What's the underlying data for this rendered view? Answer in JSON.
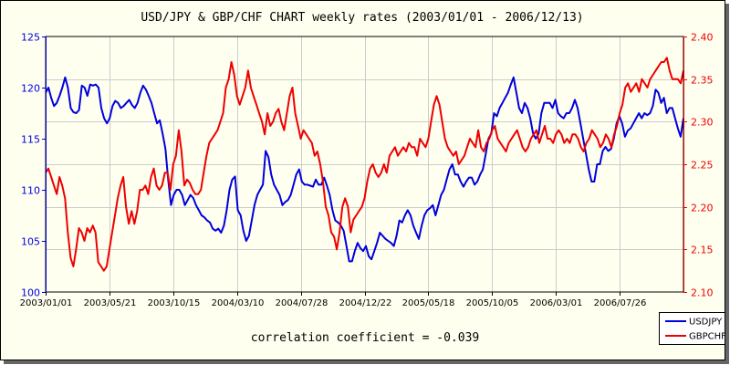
{
  "colors": {
    "background": "#fffff0",
    "usdjpy": "#0000dd",
    "gbpchf": "#ee0000",
    "grid": "#cccccc",
    "text": "#000000"
  },
  "chart_data": {
    "type": "line",
    "title": "USD/JPY & GBP/CHF CHART weekly rates (2003/01/01 - 2006/12/13)",
    "annotation": "correlation coefficient = -0.039",
    "grid": true,
    "legend_position": "bottom-right",
    "x_tick_labels": [
      "2003/01/01",
      "2003/05/21",
      "2003/10/15",
      "2004/03/10",
      "2004/07/28",
      "2004/12/22",
      "2005/05/18",
      "2005/10/05",
      "2006/03/01",
      "2006/07/26"
    ],
    "y_left": {
      "ylim": [
        100,
        125
      ],
      "ticks": [
        "100",
        "105",
        "110",
        "115",
        "120",
        "125"
      ]
    },
    "y_right": {
      "ylim": [
        2.1,
        2.4
      ],
      "ticks": [
        "2.10",
        "2.15",
        "2.20",
        "2.25",
        "2.30",
        "2.35",
        "2.40"
      ]
    },
    "series": [
      {
        "name": "USDJPY",
        "axis": "left",
        "values": [
          119.5,
          120,
          119,
          118.2,
          118.5,
          119.2,
          120,
          121,
          120,
          118,
          117.6,
          117.5,
          117.8,
          120.2,
          120,
          119.2,
          120.3,
          120.2,
          120.3,
          120,
          118,
          117,
          116.5,
          117,
          118.2,
          118.7,
          118.5,
          118,
          118.2,
          118.5,
          118.8,
          118.3,
          118,
          118.5,
          119.5,
          120.2,
          119.8,
          119.2,
          118.5,
          117.5,
          116.5,
          116.8,
          115.5,
          114,
          111,
          108.5,
          109.5,
          110,
          110,
          109.5,
          108.5,
          109,
          109.5,
          109.2,
          108.5,
          108,
          107.5,
          107.3,
          107,
          106.8,
          106.2,
          106,
          106.2,
          105.8,
          106.5,
          108,
          110,
          111,
          111.3,
          108,
          107.5,
          106,
          105,
          105.5,
          107,
          108.5,
          109.5,
          110,
          110.5,
          113.8,
          113.2,
          111.5,
          110.5,
          110,
          109.5,
          108.5,
          108.8,
          109,
          109.5,
          110.5,
          111.5,
          112,
          110.8,
          110.5,
          110.5,
          110.4,
          110.3,
          111,
          110.5,
          110.5,
          111.2,
          110.4,
          109.5,
          108,
          107,
          106.8,
          106.5,
          106,
          104.5,
          103,
          103,
          104,
          104.8,
          104.3,
          104,
          104.5,
          103.5,
          103.2,
          104,
          104.8,
          105.8,
          105.5,
          105.2,
          105,
          104.8,
          104.5,
          105.5,
          107,
          106.8,
          107.5,
          108,
          107.5,
          106.5,
          105.8,
          105.2,
          106.5,
          107.5,
          108,
          108.2,
          108.5,
          107.5,
          108.5,
          109.5,
          110,
          111,
          112,
          112.5,
          111.5,
          111.5,
          110.8,
          110.3,
          110.8,
          111.2,
          111.2,
          110.5,
          110.8,
          111.5,
          112,
          113.5,
          115,
          115.5,
          117.5,
          117.2,
          118,
          118.5,
          119,
          119.5,
          120.3,
          121,
          119.5,
          118,
          117.5,
          118.5,
          118,
          117,
          115.5,
          115,
          115.5,
          117.5,
          118.5,
          118.5,
          118.5,
          118,
          118.8,
          117.5,
          117.2,
          117,
          117.5,
          117.5,
          118,
          118.8,
          118,
          116.5,
          115,
          113.5,
          112,
          110.8,
          110.8,
          112.5,
          112.5,
          113.8,
          114.2,
          113.8,
          114,
          115,
          116.5,
          117.2,
          116.5,
          115.2,
          115.8,
          116,
          116.5,
          117,
          117.5,
          117,
          117.5,
          117.3,
          117.5,
          118.2,
          119.8,
          119.5,
          118.5,
          119,
          117.5,
          118,
          118,
          117,
          116,
          115.2,
          117
        ]
      },
      {
        "name": "GBPCHF",
        "axis": "right",
        "values": [
          2.24,
          2.245,
          2.235,
          2.225,
          2.215,
          2.235,
          2.225,
          2.21,
          2.17,
          2.14,
          2.13,
          2.15,
          2.175,
          2.17,
          2.16,
          2.175,
          2.17,
          2.178,
          2.17,
          2.135,
          2.13,
          2.125,
          2.13,
          2.15,
          2.17,
          2.19,
          2.21,
          2.225,
          2.235,
          2.2,
          2.18,
          2.195,
          2.18,
          2.195,
          2.22,
          2.22,
          2.225,
          2.215,
          2.235,
          2.245,
          2.225,
          2.22,
          2.225,
          2.24,
          2.24,
          2.22,
          2.25,
          2.26,
          2.29,
          2.265,
          2.225,
          2.232,
          2.228,
          2.22,
          2.215,
          2.215,
          2.22,
          2.24,
          2.26,
          2.275,
          2.28,
          2.285,
          2.29,
          2.3,
          2.31,
          2.34,
          2.35,
          2.37,
          2.355,
          2.33,
          2.32,
          2.33,
          2.34,
          2.36,
          2.34,
          2.33,
          2.32,
          2.31,
          2.3,
          2.285,
          2.31,
          2.295,
          2.3,
          2.31,
          2.315,
          2.3,
          2.29,
          2.31,
          2.33,
          2.34,
          2.31,
          2.295,
          2.28,
          2.29,
          2.285,
          2.28,
          2.275,
          2.26,
          2.265,
          2.25,
          2.23,
          2.2,
          2.19,
          2.17,
          2.165,
          2.15,
          2.17,
          2.2,
          2.21,
          2.2,
          2.17,
          2.185,
          2.19,
          2.195,
          2.2,
          2.21,
          2.23,
          2.245,
          2.25,
          2.24,
          2.235,
          2.24,
          2.25,
          2.24,
          2.26,
          2.265,
          2.27,
          2.26,
          2.265,
          2.27,
          2.265,
          2.275,
          2.27,
          2.27,
          2.26,
          2.28,
          2.275,
          2.27,
          2.28,
          2.3,
          2.32,
          2.33,
          2.32,
          2.3,
          2.28,
          2.27,
          2.265,
          2.26,
          2.265,
          2.25,
          2.255,
          2.26,
          2.27,
          2.28,
          2.275,
          2.27,
          2.29,
          2.27,
          2.265,
          2.275,
          2.28,
          2.29,
          2.295,
          2.28,
          2.275,
          2.27,
          2.265,
          2.275,
          2.28,
          2.285,
          2.29,
          2.28,
          2.27,
          2.265,
          2.27,
          2.28,
          2.285,
          2.29,
          2.275,
          2.285,
          2.295,
          2.28,
          2.28,
          2.275,
          2.285,
          2.29,
          2.285,
          2.275,
          2.28,
          2.275,
          2.285,
          2.285,
          2.28,
          2.27,
          2.265,
          2.275,
          2.28,
          2.29,
          2.285,
          2.28,
          2.27,
          2.275,
          2.285,
          2.28,
          2.27,
          2.285,
          2.295,
          2.31,
          2.32,
          2.34,
          2.345,
          2.335,
          2.34,
          2.345,
          2.335,
          2.35,
          2.345,
          2.34,
          2.35,
          2.355,
          2.36,
          2.365,
          2.37,
          2.37,
          2.375,
          2.36,
          2.35,
          2.35,
          2.35,
          2.345,
          2.36
        ]
      }
    ]
  }
}
